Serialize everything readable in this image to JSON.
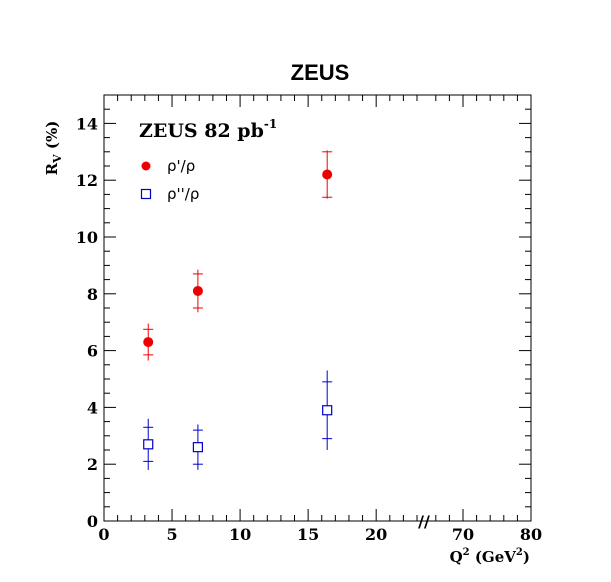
{
  "chart_data": {
    "type": "scatter",
    "title": "ZEUS",
    "experiment_label": {
      "main": "ZEUS 82 pb",
      "sup": "-1"
    },
    "ylabel": {
      "main": "R",
      "sub": "V",
      "rest": " (%)"
    },
    "xlabel": {
      "main": "Q",
      "sup": "2",
      "rest": " (GeV",
      "sup2": "2",
      "end": ")"
    },
    "ylim": [
      0,
      15
    ],
    "xlim": [
      0,
      80
    ],
    "x_axis_break": {
      "from": 23,
      "to": 65,
      "symbol": "//"
    },
    "y_ticks": [
      0,
      2,
      4,
      6,
      8,
      10,
      12,
      14
    ],
    "x_ticks": [
      0,
      5,
      10,
      15,
      20,
      70,
      80
    ],
    "legend_position": "top-left",
    "series": [
      {
        "name": "ρ'/ρ",
        "marker": "filled-circle",
        "color": "#ee0000",
        "points": [
          {
            "x": 3.25,
            "y": 6.3,
            "stat": 0.45,
            "tot": 0.65
          },
          {
            "x": 6.9,
            "y": 8.1,
            "stat": 0.6,
            "tot": 0.75
          },
          {
            "x": 16.4,
            "y": 12.2,
            "stat": 0.8,
            "tot": 0.85
          }
        ]
      },
      {
        "name": "ρ''/ρ",
        "marker": "open-square",
        "color": "#0000cc",
        "points": [
          {
            "x": 3.25,
            "y": 2.7,
            "stat": 0.6,
            "tot": 0.9
          },
          {
            "x": 6.9,
            "y": 2.6,
            "stat": 0.6,
            "tot": 0.8
          },
          {
            "x": 16.4,
            "y": 3.9,
            "stat": 1.0,
            "tot": 1.4
          }
        ]
      }
    ]
  }
}
